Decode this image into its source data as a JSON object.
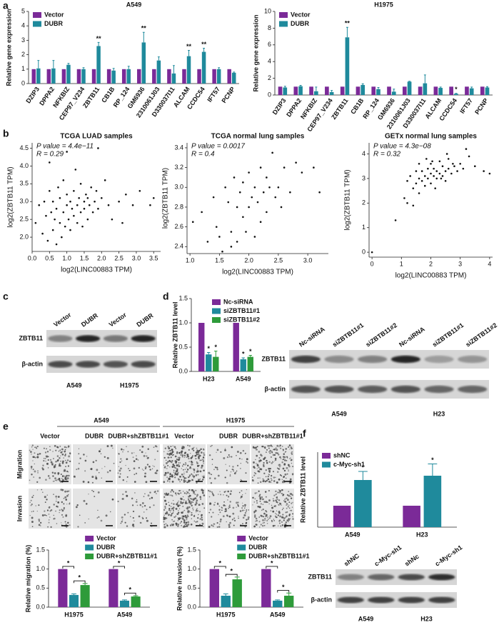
{
  "panels": [
    "a",
    "b",
    "c",
    "d",
    "e",
    "f"
  ],
  "chart_data": [
    {
      "type": "bar",
      "title": "A549",
      "ylabel": "Relative gene expression",
      "legend": "top-left",
      "categories": [
        "DZIP3",
        "DPPA2",
        "NFKBIZ",
        "CEP97_V234",
        "ZBTB11",
        "CB1B",
        "RP_124",
        "GM6936",
        "2310061J03",
        "D330037I11",
        "ALCAM",
        "CCDC54",
        "IFT57",
        "PCNP"
      ],
      "series": [
        {
          "name": "Vector",
          "color": "#7b2a98",
          "values": [
            1,
            1,
            1,
            1,
            1,
            1,
            1,
            1,
            1,
            1,
            1,
            1,
            1,
            1
          ]
        },
        {
          "name": "DUBR",
          "color": "#1f8a9c",
          "values": [
            1.05,
            1.05,
            1.3,
            1.0,
            2.6,
            0.9,
            1.0,
            2.85,
            1.6,
            0.7,
            1.9,
            2.2,
            1.0,
            0.75
          ],
          "errors": [
            0.55,
            0.55,
            0.1,
            0.1,
            0.25,
            0.15,
            0.2,
            0.7,
            0.25,
            0.55,
            0.4,
            0.25,
            0.1,
            0.05
          ],
          "significance": [
            null,
            null,
            null,
            null,
            "**",
            null,
            null,
            "**",
            null,
            null,
            "**",
            "**",
            null,
            null
          ]
        }
      ],
      "ylim": [
        0,
        5
      ],
      "yticks": [
        0,
        1,
        2,
        3,
        4,
        5
      ]
    },
    {
      "type": "bar",
      "title": "H1975",
      "ylabel": "Relative gene expression",
      "legend": "top-left",
      "categories": [
        "DZIP3",
        "DPPA2",
        "NFKBIZ",
        "CEP97_V234",
        "ZBTB11",
        "CB1B",
        "RP_124",
        "GM6936",
        "2310061J03",
        "D330037I11",
        "ALCAM",
        "CCDC54",
        "IFT57",
        "PCNP"
      ],
      "series": [
        {
          "name": "Vector",
          "color": "#7b2a98",
          "values": [
            1,
            1,
            1,
            1,
            1,
            1,
            1,
            1,
            1,
            1,
            1,
            1,
            1,
            1
          ]
        },
        {
          "name": "DUBR",
          "color": "#1f8a9c",
          "values": [
            0.9,
            1.05,
            0.45,
            0.35,
            6.9,
            1.2,
            0.7,
            0.4,
            1.6,
            1.4,
            0.85,
            0.15,
            0.8,
            0.9
          ],
          "errors": [
            0.15,
            0.1,
            0.5,
            0.2,
            1.2,
            0.15,
            0.2,
            0.3,
            0.05,
            1.0,
            0.1,
            0.05,
            0.15,
            0.1
          ],
          "significance": [
            null,
            null,
            null,
            null,
            "**",
            null,
            null,
            null,
            null,
            null,
            null,
            "*",
            null,
            null
          ]
        }
      ],
      "ylim": [
        0,
        10
      ],
      "yticks": [
        0,
        2,
        4,
        6,
        8,
        10
      ]
    },
    {
      "type": "scatter",
      "title": "TCGA LUAD samples",
      "stats": [
        "P value = 4.4e−11",
        "R = 0.29"
      ],
      "xlabel": "log2(LINC00883 TPM)",
      "ylabel": "log2(ZBTB11 TPM)",
      "x": [
        0.1,
        0.2,
        0.3,
        0.35,
        0.4,
        0.45,
        0.5,
        0.55,
        0.6,
        0.6,
        0.65,
        0.7,
        0.7,
        0.75,
        0.8,
        0.8,
        0.85,
        0.9,
        0.9,
        0.95,
        1.0,
        1.0,
        1.05,
        1.1,
        1.1,
        1.15,
        1.2,
        1.2,
        1.25,
        1.3,
        1.3,
        1.35,
        1.4,
        1.4,
        1.45,
        1.5,
        1.5,
        1.55,
        1.6,
        1.6,
        1.65,
        1.7,
        1.75,
        1.8,
        1.85,
        1.9,
        2.0,
        2.1,
        2.2,
        2.3,
        2.5,
        2.6,
        2.7,
        2.9,
        3.1,
        3.4,
        3.5,
        1.9,
        0.5,
        1.0
      ],
      "values": [
        2.4,
        2.9,
        2.1,
        3.0,
        2.6,
        1.9,
        3.3,
        2.7,
        2.2,
        3.0,
        2.5,
        1.8,
        2.8,
        3.4,
        2.4,
        3.1,
        2.0,
        2.7,
        3.6,
        2.3,
        2.9,
        3.2,
        2.5,
        3.0,
        2.2,
        2.8,
        3.3,
        2.6,
        3.9,
        2.9,
        2.4,
        3.1,
        2.7,
        3.5,
        2.3,
        3.0,
        2.8,
        3.2,
        2.5,
        3.1,
        2.9,
        3.4,
        2.7,
        3.0,
        3.3,
        2.8,
        3.1,
        3.6,
        2.9,
        2.5,
        3.0,
        2.4,
        3.2,
        2.9,
        3.3,
        2.9,
        3.1,
        4.5,
        4.1,
        4.4
      ],
      "xlim": [
        0,
        3.7
      ],
      "xticks": [
        {
          "value": 0,
          "label": "0.0"
        },
        0.5,
        {
          "value": 1,
          "label": "1.0"
        },
        1.5,
        {
          "value": 2,
          "label": "2.0"
        },
        2.5,
        {
          "value": 3,
          "label": "3.0"
        },
        3.5
      ],
      "ylim": [
        1.6,
        4.65
      ],
      "yticks": [
        {
          "value": 2,
          "label": "2.0"
        },
        2.5,
        {
          "value": 3,
          "label": "3.0"
        },
        3.5,
        {
          "value": 4,
          "label": "4.0"
        },
        4.5
      ]
    },
    {
      "type": "scatter",
      "title": "TCGA normal lung samples",
      "stats": [
        "P value = 0.0017",
        "R = 0.4"
      ],
      "xlabel": "log2(LINC00883 TPM)",
      "ylabel": "log2(ZBTB11 TPM)",
      "x": [
        1.05,
        1.2,
        1.3,
        1.4,
        1.45,
        1.5,
        1.55,
        1.6,
        1.65,
        1.7,
        1.7,
        1.75,
        1.8,
        1.8,
        1.85,
        1.9,
        1.9,
        1.95,
        2.0,
        2.0,
        2.05,
        2.1,
        2.1,
        2.15,
        2.2,
        2.2,
        2.25,
        2.3,
        2.3,
        2.35,
        2.4,
        2.45,
        2.5,
        2.55,
        2.6,
        2.7,
        2.8,
        2.9,
        3.1,
        3.2
      ],
      "values": [
        2.65,
        2.75,
        2.45,
        2.9,
        2.6,
        2.5,
        2.35,
        3.0,
        2.85,
        2.4,
        2.55,
        3.1,
        2.8,
        2.45,
        2.95,
        2.7,
        3.05,
        2.55,
        2.8,
        3.15,
        2.9,
        2.5,
        3.0,
        2.85,
        2.65,
        3.2,
        2.95,
        3.1,
        2.75,
        3.0,
        3.35,
        2.9,
        3.0,
        2.8,
        3.2,
        2.95,
        3.25,
        3.15,
        3.2,
        2.95
      ],
      "xlim": [
        0.95,
        3.35
      ],
      "xticks": [
        {
          "value": 1,
          "label": "1.0"
        },
        1.5,
        {
          "value": 2,
          "label": "2.0"
        },
        2.5,
        {
          "value": 3,
          "label": "3.0"
        }
      ],
      "ylim": [
        2.33,
        3.45
      ],
      "yticks": [
        2.4,
        2.6,
        2.8,
        {
          "value": 3,
          "label": "3.0"
        },
        3.2,
        3.4
      ]
    },
    {
      "type": "scatter",
      "title": "GETx normal lung samples",
      "stats": [
        "P value = 4.3e−08",
        "R = 0.32"
      ],
      "xlabel": "log2(LINC00883 TPM)",
      "ylabel": "log2(ZBTB11 TPM)",
      "x": [
        0.0,
        0.8,
        1.1,
        1.2,
        1.3,
        1.4,
        1.5,
        1.5,
        1.6,
        1.6,
        1.7,
        1.7,
        1.8,
        1.8,
        1.9,
        1.9,
        2.0,
        2.0,
        2.0,
        2.1,
        2.1,
        2.2,
        2.2,
        2.3,
        2.3,
        2.4,
        2.4,
        2.5,
        2.5,
        2.6,
        2.6,
        2.7,
        2.8,
        2.9,
        3.0,
        3.1,
        3.3,
        3.5,
        3.8,
        4.0,
        1.2,
        1.6,
        1.85,
        2.15,
        2.35,
        2.55,
        2.75,
        3.2,
        1.4,
        2.05
      ],
      "values": [
        0.0,
        1.3,
        2.2,
        2.9,
        3.1,
        2.6,
        3.3,
        2.8,
        3.0,
        3.6,
        2.9,
        3.3,
        3.1,
        2.7,
        3.4,
        3.0,
        3.2,
        2.8,
        3.6,
        3.1,
        3.4,
        3.0,
        3.3,
        3.2,
        3.7,
        3.1,
        3.5,
        3.3,
        2.9,
        3.4,
        3.8,
        3.2,
        3.5,
        3.3,
        3.6,
        3.4,
        3.9,
        3.5,
        3.3,
        3.2,
        2.0,
        2.4,
        3.8,
        2.6,
        3.0,
        4.0,
        3.6,
        4.2,
        1.9,
        3.7
      ],
      "xlim": [
        -0.1,
        4.1
      ],
      "xticks": [
        0,
        1,
        2,
        3,
        4
      ],
      "ylim": [
        -0.2,
        4.45
      ],
      "yticks": [
        0,
        1,
        2,
        3,
        4
      ]
    },
    {
      "type": "bar",
      "ylabel": "Relative ZBTB11 level",
      "legend": "top-right",
      "categories": [
        "H23",
        "A549"
      ],
      "series": [
        {
          "name": "Nc-siRNA",
          "color": "#7b2a98",
          "values": [
            1,
            1
          ]
        },
        {
          "name": "siZBTB11#1",
          "color": "#1f8a9c",
          "values": [
            0.35,
            0.25
          ],
          "errors": [
            0.04,
            0.03
          ],
          "significance": [
            "*",
            "*"
          ]
        },
        {
          "name": "siZBTB11#2",
          "color": "#2e9b3a",
          "values": [
            0.3,
            0.3
          ],
          "errors": [
            0.12,
            0.03
          ],
          "significance": [
            "*",
            "*"
          ]
        }
      ],
      "ylim": [
        0,
        1.5
      ],
      "yticks": [
        {
          "value": 0,
          "label": "0.0"
        },
        0.5,
        {
          "value": 1,
          "label": "1.0"
        },
        1.5
      ]
    },
    {
      "type": "bar",
      "ylabel": "Relative migration (%)",
      "legend": "top",
      "categories": [
        "H1975",
        "A549"
      ],
      "series": [
        {
          "name": "Vector",
          "color": "#7b2a98",
          "values": [
            1,
            1
          ]
        },
        {
          "name": "DUBR",
          "color": "#1f8a9c",
          "values": [
            0.32,
            0.17
          ],
          "errors": [
            0.03,
            0.02
          ]
        },
        {
          "name": "DUBR+shZBTB11#1",
          "color": "#2e9b3a",
          "values": [
            0.58,
            0.28
          ],
          "errors": [
            0.04,
            0.02
          ]
        }
      ],
      "comparisons": [
        {
          "category": 0,
          "from": 0,
          "to": 1,
          "label": "*"
        },
        {
          "category": 0,
          "from": 1,
          "to": 2,
          "label": "*"
        },
        {
          "category": 1,
          "from": 0,
          "to": 1,
          "label": "*"
        },
        {
          "category": 1,
          "from": 1,
          "to": 2,
          "label": "*"
        }
      ],
      "ylim": [
        0,
        1.5
      ],
      "yticks": [
        {
          "value": 0,
          "label": "0.0"
        },
        0.5,
        {
          "value": 1,
          "label": "1.0"
        },
        1.5
      ]
    },
    {
      "type": "bar",
      "ylabel": "Relative invasion (%)",
      "legend": "top",
      "categories": [
        "H1975",
        "A549"
      ],
      "series": [
        {
          "name": "Vector",
          "color": "#7b2a98",
          "values": [
            1,
            1
          ]
        },
        {
          "name": "DUBR",
          "color": "#1f8a9c",
          "values": [
            0.3,
            0.17
          ],
          "errors": [
            0.05,
            0.02
          ]
        },
        {
          "name": "DUBR+shZBTB11#1",
          "color": "#2e9b3a",
          "values": [
            0.73,
            0.3
          ],
          "errors": [
            0.06,
            0.07
          ]
        }
      ],
      "comparisons": [
        {
          "category": 0,
          "from": 0,
          "to": 1,
          "label": "*"
        },
        {
          "category": 0,
          "from": 1,
          "to": 2,
          "label": "*"
        },
        {
          "category": 1,
          "from": 0,
          "to": 1,
          "label": "*"
        },
        {
          "category": 1,
          "from": 1,
          "to": 2,
          "label": "*"
        }
      ],
      "ylim": [
        0,
        1.5
      ],
      "yticks": [
        {
          "value": 0,
          "label": "0.0"
        },
        0.5,
        {
          "value": 1,
          "label": "1.0"
        },
        1.5
      ]
    },
    {
      "type": "bar",
      "ylabel": "Relative ZBTB11 level",
      "legend": "top-left",
      "categories": [
        "A549",
        "H23"
      ],
      "series": [
        {
          "name": "shNC",
          "color": "#7b2a98",
          "values": [
            1,
            1
          ]
        },
        {
          "name": "c-Myc-sh1",
          "color": "#1f8a9c",
          "values": [
            2.2,
            2.4
          ],
          "errors": [
            0.4,
            0.55
          ],
          "significance": [
            "*",
            "*"
          ]
        }
      ],
      "ylim": [
        0,
        3.5
      ]
    }
  ],
  "blots": [
    {
      "lanes": [
        "Vector",
        "DUBR",
        "Vector",
        "DUBR"
      ],
      "rows": [
        "ZBTB11",
        "β-actin"
      ],
      "groups": [
        "A549",
        "H1975"
      ]
    },
    {
      "lanes": [
        "Nc-siRNA",
        "siZBTB11#1",
        "siZBTB11#2",
        "Nc-siRNA",
        "siZBTB11#1",
        "siZBTB11#2"
      ],
      "rows": [
        "ZBTB11",
        "β-actin"
      ],
      "groups": [
        "A549",
        "H23"
      ]
    },
    {
      "lanes": [
        "shNC",
        "c-Myc-sh1",
        "shNc",
        "c-Myc-sh1"
      ],
      "rows": [
        "ZBTB11",
        "β-actin"
      ],
      "groups": [
        "A549",
        "H23"
      ]
    }
  ],
  "images": {
    "groups": [
      "A549",
      "H1975"
    ],
    "conditions": [
      "Vector",
      "DUBR",
      "DUBR+shZBTB11#1",
      "Vector",
      "DUBR",
      "DUBR+shZBTB11#1"
    ],
    "rows": [
      "Migration",
      "Invasion"
    ]
  }
}
